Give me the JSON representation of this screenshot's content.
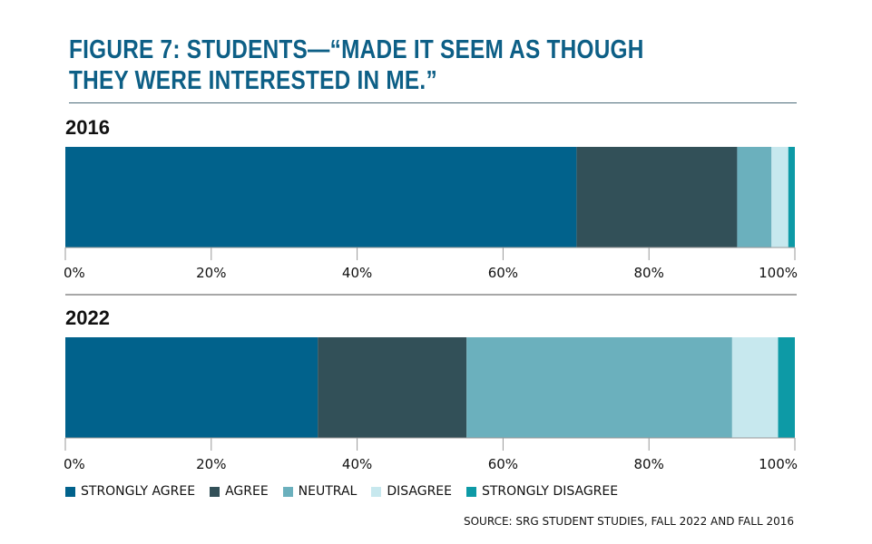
{
  "title": "FIGURE 7: STUDENTS—“MADE IT SEEM AS THOUGH THEY WERE INTERESTED IN ME.”",
  "source": "SOURCE: SRG STUDENT STUDIES, FALL 2022 AND FALL 2016",
  "chart_data": [
    {
      "type": "bar",
      "orientation": "horizontal-stacked-100",
      "title": "2016",
      "xlim": [
        0,
        100
      ],
      "x_ticks": [
        "0%",
        "20%",
        "40%",
        "60%",
        "80%",
        "100%"
      ],
      "series": [
        {
          "name": "STRONGLY AGREE",
          "color": "#01628c",
          "value": 70
        },
        {
          "name": "AGREE",
          "color": "#325058",
          "value": 22
        },
        {
          "name": "NEUTRAL",
          "color": "#6bb0bd",
          "value": 4.7
        },
        {
          "name": "DISAGREE",
          "color": "#c7e8ee",
          "value": 2.3
        },
        {
          "name": "STRONGLY DISAGREE",
          "color": "#0d9aa6",
          "value": 0.9
        }
      ]
    },
    {
      "type": "bar",
      "orientation": "horizontal-stacked-100",
      "title": "2022",
      "xlim": [
        0,
        100
      ],
      "x_ticks": [
        "0%",
        "20%",
        "40%",
        "60%",
        "80%",
        "100%"
      ],
      "series": [
        {
          "name": "STRONGLY AGREE",
          "color": "#01628c",
          "value": 34.6
        },
        {
          "name": "AGREE",
          "color": "#325058",
          "value": 20.4
        },
        {
          "name": "NEUTRAL",
          "color": "#6bb0bd",
          "value": 36.4
        },
        {
          "name": "DISAGREE",
          "color": "#c7e8ee",
          "value": 6.3
        },
        {
          "name": "STRONGLY DISAGREE",
          "color": "#0d9aa6",
          "value": 2.3
        }
      ]
    }
  ],
  "legend": [
    {
      "label": "STRONGLY AGREE",
      "color": "#01628c"
    },
    {
      "label": "AGREE",
      "color": "#325058"
    },
    {
      "label": "NEUTRAL",
      "color": "#6bb0bd"
    },
    {
      "label": "DISAGREE",
      "color": "#c7e8ee"
    },
    {
      "label": "STRONGLY DISAGREE",
      "color": "#0d9aa6"
    }
  ]
}
